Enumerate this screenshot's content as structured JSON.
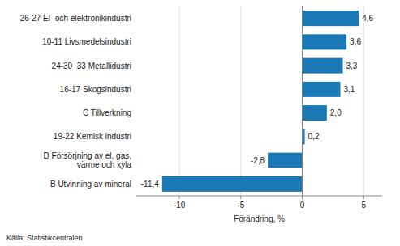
{
  "chart_data": {
    "type": "bar",
    "orientation": "horizontal",
    "categories": [
      "B Utvinning av mineral",
      "D Försörjning av el, gas,\nvärme och kyla",
      "19-22 Kemisk industri",
      "C Tillverkning",
      "16-17 Skogsindustri",
      "24-30_33 Metallidustri",
      "10-11 Livsmedelsindustri",
      "26-27 El- och elektronikindustri"
    ],
    "values": [
      -11.4,
      -2.8,
      0.2,
      2.0,
      3.1,
      3.3,
      3.6,
      4.6
    ],
    "value_labels": [
      "-11,4",
      "-2,8",
      "0,2",
      "2,0",
      "3,1",
      "3,3",
      "3,6",
      "4,6"
    ],
    "data_labels": true,
    "color": "#1a78b4",
    "xlabel": "Förändring, %",
    "xlim": [
      -13.5,
      6.5
    ],
    "xticks": [
      -10,
      -5,
      0,
      5
    ],
    "grid": true,
    "annotations": [
      "Källa: Statistikcentralen"
    ]
  }
}
